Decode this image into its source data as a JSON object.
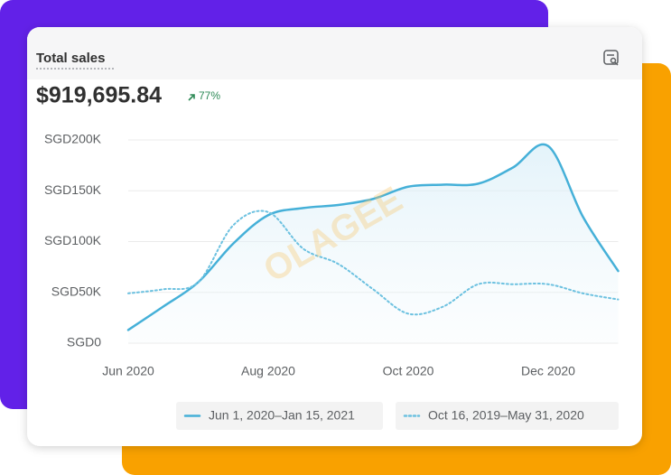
{
  "chart_data": {
    "type": "line",
    "title": "Total sales",
    "total": "$919,695.84",
    "change": "77%",
    "watermark": "OLAGEE",
    "categories": [
      "Jun 2020",
      null,
      null,
      null,
      "Aug 2020",
      null,
      null,
      null,
      "Oct 2020",
      null,
      null,
      null,
      "Dec 2020",
      null,
      null
    ],
    "series": [
      {
        "name": "Jun 1, 2020–Jan 15, 2021",
        "color": "#45b0d8",
        "style": "solid",
        "values": [
          13000,
          36000,
          60000,
          98000,
          126000,
          133000,
          136000,
          142000,
          154000,
          156000,
          157000,
          173000,
          194000,
          124000,
          71000
        ]
      },
      {
        "name": "Oct 16, 2019–May 31, 2020",
        "color": "#6cc1e0",
        "style": "dotted",
        "values": [
          49000,
          53000,
          60000,
          116000,
          129000,
          93000,
          78000,
          53000,
          29000,
          36000,
          58000,
          58000,
          58000,
          49000,
          43000
        ]
      }
    ],
    "ylim": [
      0,
      200000
    ],
    "yticks": [
      {
        "value": 0,
        "label": "SGD0"
      },
      {
        "value": 50000,
        "label": "SGD50K"
      },
      {
        "value": 100000,
        "label": "SGD100K"
      },
      {
        "value": 150000,
        "label": "SGD150K"
      },
      {
        "value": 200000,
        "label": "SGD200K"
      }
    ],
    "grid": true
  }
}
